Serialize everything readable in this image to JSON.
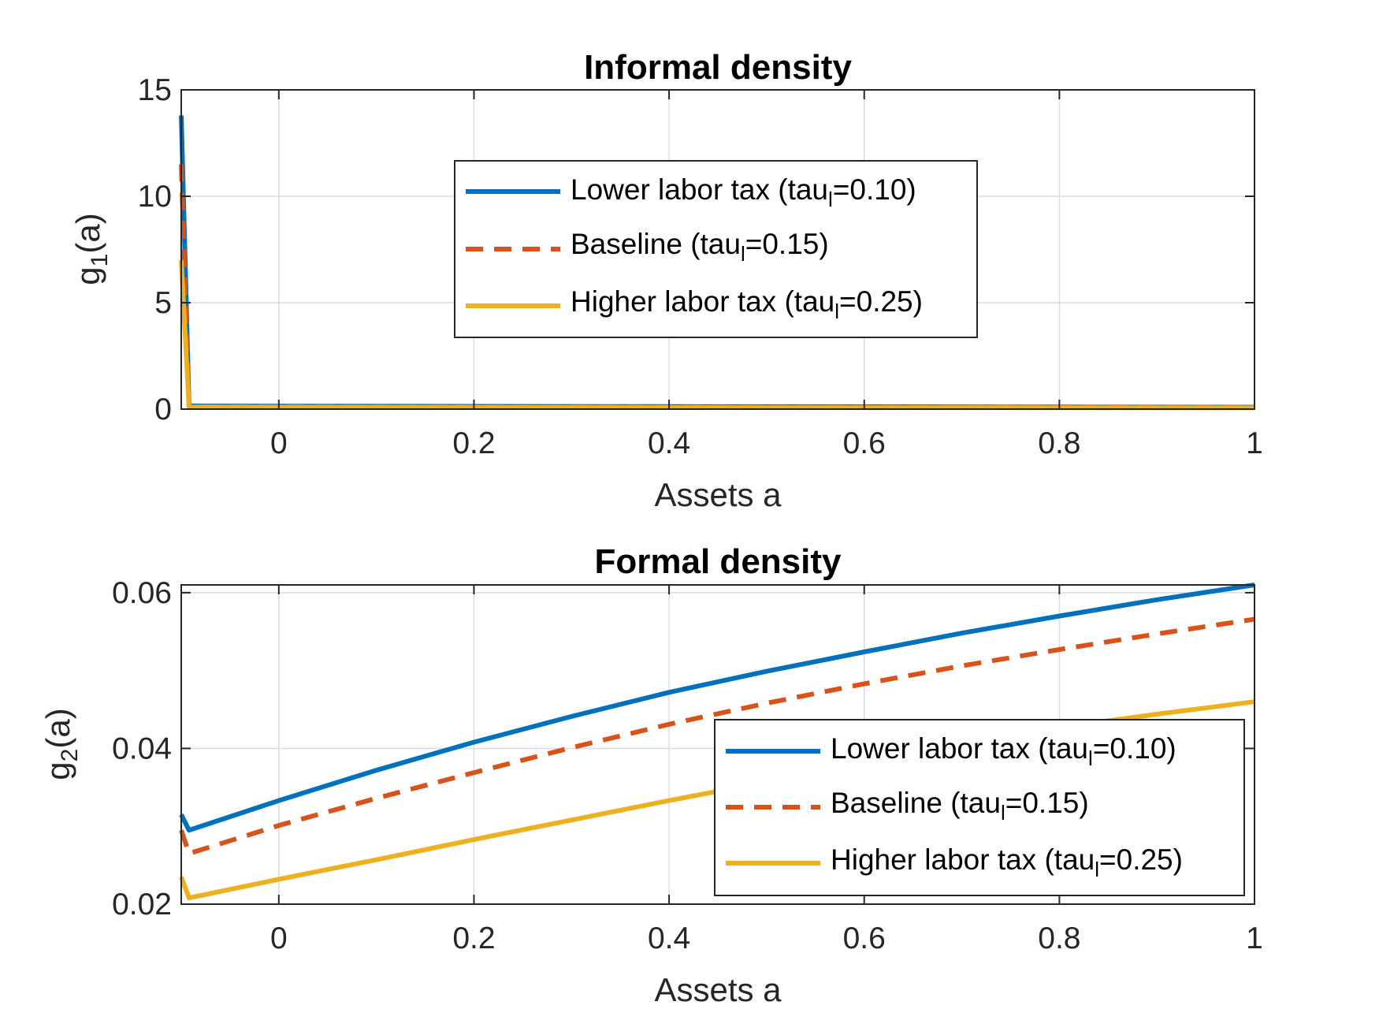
{
  "chart_data": [
    {
      "type": "line",
      "title": "Informal density",
      "xlabel": "Assets a",
      "ylabel": {
        "base": "g",
        "sub": "1",
        "rest": "(a)"
      },
      "xlim": [
        -0.1,
        1
      ],
      "ylim": [
        0,
        15
      ],
      "xticks": [
        0,
        0.2,
        0.4,
        0.6,
        0.8,
        1
      ],
      "yticks": [
        0,
        5,
        10,
        15
      ],
      "xtick_labels": [
        "0",
        "0.2",
        "0.4",
        "0.6",
        "0.8",
        "1"
      ],
      "ytick_labels": [
        "0",
        "5",
        "10",
        "15"
      ],
      "grid": true,
      "legend_position": "center-top",
      "series": [
        {
          "name": {
            "pre": "Lower labor tax (tau",
            "sub": "l",
            "post": "=0.10)"
          },
          "color": "#0072BD",
          "dash": "solid",
          "x": [
            -0.1,
            -0.092,
            0,
            0.2,
            0.4,
            0.6,
            0.8,
            1
          ],
          "y": [
            13.8,
            0.15,
            0.14,
            0.13,
            0.12,
            0.11,
            0.1,
            0.09
          ]
        },
        {
          "name": {
            "pre": "Baseline (tau",
            "sub": "l",
            "post": "=0.15)"
          },
          "color": "#D95319",
          "dash": "dashed",
          "x": [
            -0.1,
            -0.092,
            0,
            0.2,
            0.4,
            0.6,
            0.8,
            1
          ],
          "y": [
            11.5,
            0.12,
            0.11,
            0.1,
            0.095,
            0.09,
            0.085,
            0.08
          ]
        },
        {
          "name": {
            "pre": "Higher labor tax (tau",
            "sub": "l",
            "post": "=0.25)"
          },
          "color": "#EDB120",
          "dash": "solid",
          "x": [
            -0.1,
            -0.092,
            0,
            0.2,
            0.4,
            0.6,
            0.8,
            1
          ],
          "y": [
            7.0,
            0.1,
            0.09,
            0.08,
            0.075,
            0.07,
            0.065,
            0.06
          ]
        }
      ]
    },
    {
      "type": "line",
      "title": "Formal density",
      "xlabel": "Assets a",
      "ylabel": {
        "base": "g",
        "sub": "2",
        "rest": "(a)"
      },
      "xlim": [
        -0.1,
        1
      ],
      "ylim": [
        0.02,
        0.061
      ],
      "xticks": [
        0,
        0.2,
        0.4,
        0.6,
        0.8,
        1
      ],
      "yticks": [
        0.02,
        0.04,
        0.06
      ],
      "xtick_labels": [
        "0",
        "0.2",
        "0.4",
        "0.6",
        "0.8",
        "1"
      ],
      "ytick_labels": [
        "0.02",
        "0.04",
        "0.06"
      ],
      "grid": true,
      "legend_position": "bottom-right",
      "series": [
        {
          "name": {
            "pre": "Lower labor tax (tau",
            "sub": "l",
            "post": "=0.10)"
          },
          "color": "#0072BD",
          "dash": "solid",
          "x": [
            -0.1,
            -0.092,
            0,
            0.1,
            0.2,
            0.3,
            0.4,
            0.5,
            0.6,
            0.7,
            0.8,
            0.9,
            1
          ],
          "y": [
            0.0315,
            0.0295,
            0.0333,
            0.0372,
            0.0408,
            0.0441,
            0.0472,
            0.0499,
            0.0524,
            0.0548,
            0.057,
            0.0591,
            0.061
          ]
        },
        {
          "name": {
            "pre": "Baseline (tau",
            "sub": "l",
            "post": "=0.15)"
          },
          "color": "#D95319",
          "dash": "dashed",
          "x": [
            -0.1,
            -0.092,
            0,
            0.1,
            0.2,
            0.3,
            0.4,
            0.5,
            0.6,
            0.7,
            0.8,
            0.9,
            1
          ],
          "y": [
            0.0295,
            0.0265,
            0.0301,
            0.0336,
            0.0369,
            0.0401,
            0.0431,
            0.0458,
            0.0483,
            0.0506,
            0.0527,
            0.0547,
            0.0566
          ]
        },
        {
          "name": {
            "pre": "Higher labor tax (tau",
            "sub": "l",
            "post": "=0.25)"
          },
          "color": "#EDB120",
          "dash": "solid",
          "x": [
            -0.1,
            -0.092,
            0,
            0.1,
            0.2,
            0.3,
            0.4,
            0.5,
            0.6,
            0.7,
            0.8,
            0.9,
            1
          ],
          "y": [
            0.0235,
            0.0208,
            0.0232,
            0.0257,
            0.0283,
            0.0308,
            0.0333,
            0.0357,
            0.0381,
            0.0404,
            0.0427,
            0.0444,
            0.046
          ]
        }
      ]
    }
  ]
}
